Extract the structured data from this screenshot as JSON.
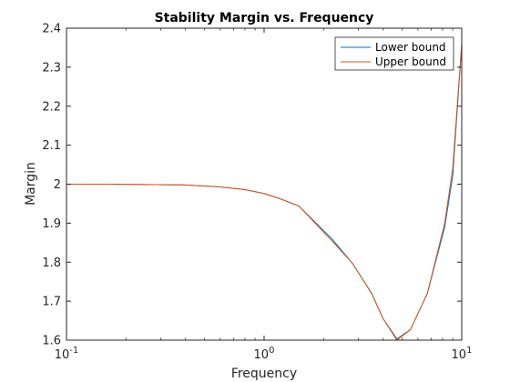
{
  "chart_data": {
    "type": "line",
    "title": "Stability Margin vs. Frequency",
    "xlabel": "Frequency",
    "ylabel": "Margin",
    "xscale": "log",
    "xlim": [
      0.1,
      10
    ],
    "ylim": [
      1.6,
      2.4
    ],
    "grid": false,
    "legend_position": "top-right",
    "x_ticks": [
      {
        "value": 0.1,
        "base": "10",
        "exp": "-1"
      },
      {
        "value": 1,
        "base": "10",
        "exp": "0"
      },
      {
        "value": 10,
        "base": "10",
        "exp": "1"
      }
    ],
    "y_ticks": [
      {
        "value": 1.6,
        "label": "1.6"
      },
      {
        "value": 1.7,
        "label": "1.7"
      },
      {
        "value": 1.8,
        "label": "1.8"
      },
      {
        "value": 1.9,
        "label": "1.9"
      },
      {
        "value": 2.0,
        "label": "2"
      },
      {
        "value": 2.1,
        "label": "2.1"
      },
      {
        "value": 2.2,
        "label": "2.2"
      },
      {
        "value": 2.3,
        "label": "2.3"
      },
      {
        "value": 2.4,
        "label": "2.4"
      }
    ],
    "series": [
      {
        "name": "Lower bound",
        "color": "#0072BD",
        "x": [
          0.1,
          0.16,
          0.25,
          0.4,
          0.6,
          0.8,
          1.0,
          1.2,
          1.5,
          2.2,
          2.8,
          3.5,
          4.0,
          4.7,
          5.5,
          6.7,
          8.2,
          9.0,
          10.0
        ],
        "y": [
          2.0,
          2.0,
          1.999,
          1.998,
          1.993,
          1.986,
          1.976,
          1.963,
          1.944,
          1.86,
          1.797,
          1.72,
          1.655,
          1.603,
          1.627,
          1.72,
          1.89,
          2.02,
          2.36
        ]
      },
      {
        "name": "Upper bound",
        "color": "#D95319",
        "x": [
          0.1,
          0.16,
          0.25,
          0.4,
          0.6,
          0.8,
          1.0,
          1.2,
          1.5,
          2.2,
          2.8,
          3.5,
          4.0,
          4.7,
          5.5,
          6.7,
          8.2,
          9.0,
          10.0
        ],
        "y": [
          2.0,
          2.0,
          1.999,
          1.998,
          1.993,
          1.986,
          1.976,
          1.963,
          1.944,
          1.855,
          1.797,
          1.72,
          1.655,
          1.6,
          1.627,
          1.72,
          1.9,
          2.04,
          2.36
        ]
      }
    ]
  }
}
